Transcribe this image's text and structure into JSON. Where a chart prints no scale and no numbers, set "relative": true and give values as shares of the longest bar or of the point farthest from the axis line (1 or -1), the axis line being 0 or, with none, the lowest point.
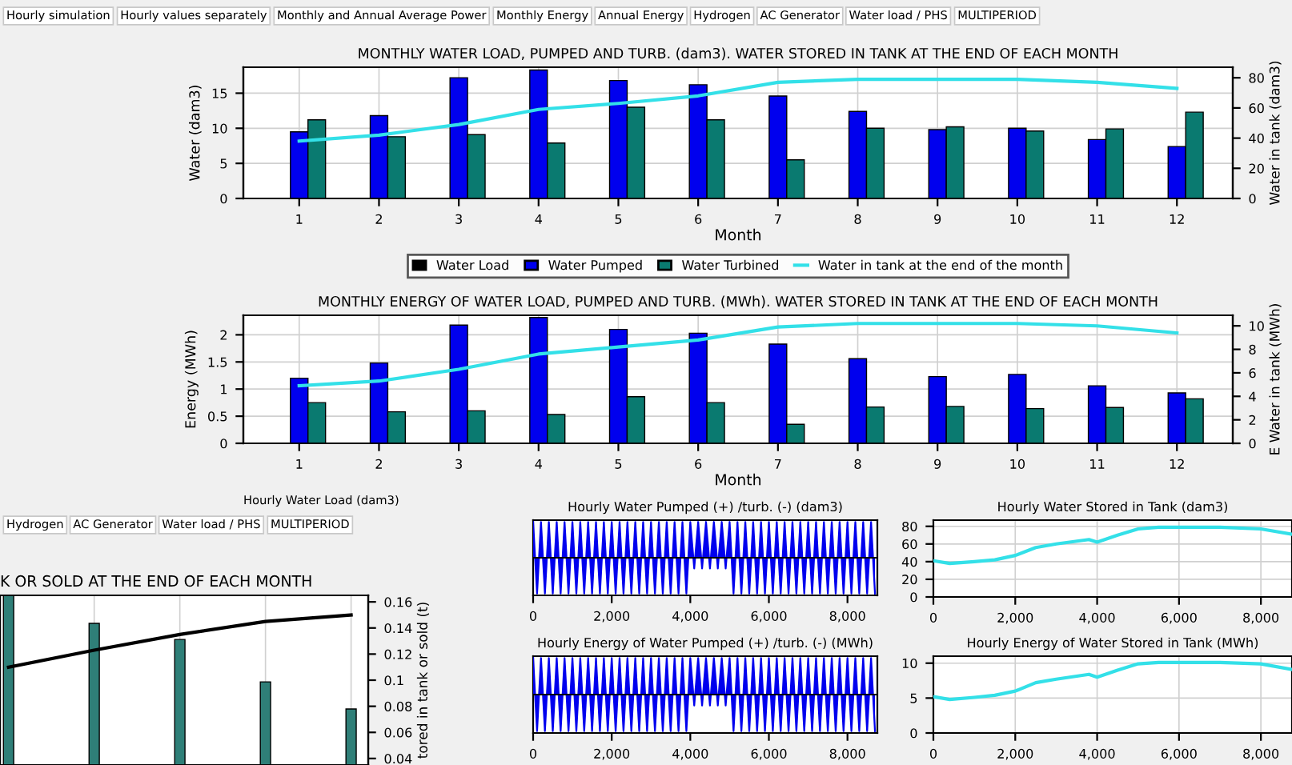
{
  "chart_data": [
    {
      "type": "bar",
      "title": "MONTHLY WATER LOAD, PUMPED AND TURB. (dam3). WATER STORED IN TANK AT THE END OF EACH MONTH",
      "xlabel": "Month",
      "ylabel": "Water (dam3)",
      "y2label": "Water in tank (dam3)",
      "annotations": [
        "Hourly simulation",
        "Hourly values separately",
        "Monthly and Annual Average Power",
        "Monthly Energy",
        "Annual Energy",
        "Hydrogen",
        "AC Generator",
        "Water load / PHS",
        "MULTIPERIOD"
      ],
      "categories": [
        "1",
        "2",
        "3",
        "4",
        "5",
        "6",
        "7",
        "8",
        "9",
        "10",
        "11",
        "12"
      ],
      "series": [
        {
          "name": "Water Load",
          "color": "#000000",
          "values": [
            0,
            0,
            0,
            0,
            0,
            0,
            0,
            0,
            0,
            0,
            0,
            0
          ]
        },
        {
          "name": "Water Pumped",
          "color": "#0000ee",
          "values": [
            9.5,
            11.8,
            17.2,
            18.3,
            16.8,
            16.2,
            14.6,
            12.4,
            9.8,
            10.0,
            8.4,
            7.4
          ]
        },
        {
          "name": "Water Turbined",
          "color": "#0a7a70",
          "values": [
            11.2,
            8.8,
            9.1,
            7.9,
            13.0,
            11.2,
            5.5,
            10.0,
            10.2,
            9.6,
            9.9,
            12.3
          ]
        },
        {
          "name": "Water in tank at the end of the month",
          "type": "line",
          "axis": "y2",
          "color": "#33e0e8",
          "values": [
            38,
            42,
            49,
            59,
            63,
            68,
            77,
            79,
            79,
            79,
            77,
            73
          ]
        }
      ],
      "ylim": [
        0,
        18.7
      ],
      "yticks": [
        0,
        5,
        10,
        15
      ],
      "y2lim": [
        0,
        87
      ],
      "y2ticks": [
        0,
        20,
        40,
        60,
        80
      ],
      "grid": true,
      "legend": "bottom"
    },
    {
      "type": "bar",
      "title": "MONTHLY ENERGY OF WATER LOAD, PUMPED AND TURB. (MWh). WATER STORED IN TANK AT THE END OF EACH MONTH",
      "xlabel": "Month",
      "ylabel": "Energy (MWh)",
      "y2label": "E Water in tank (MWh)",
      "categories": [
        "1",
        "2",
        "3",
        "4",
        "5",
        "6",
        "7",
        "8",
        "9",
        "10",
        "11",
        "12"
      ],
      "series": [
        {
          "color": "#000000",
          "values": [
            0,
            0,
            0,
            0,
            0,
            0,
            0,
            0,
            0,
            0,
            0,
            0
          ]
        },
        {
          "color": "#0000ee",
          "values": [
            1.2,
            1.48,
            2.18,
            2.32,
            2.1,
            2.03,
            1.83,
            1.56,
            1.23,
            1.27,
            1.06,
            0.93
          ]
        },
        {
          "color": "#0a7a70",
          "values": [
            0.75,
            0.58,
            0.6,
            0.53,
            0.86,
            0.75,
            0.35,
            0.67,
            0.68,
            0.64,
            0.66,
            0.82
          ]
        },
        {
          "type": "line",
          "axis": "y2",
          "color": "#33e0e8",
          "values": [
            4.9,
            5.3,
            6.3,
            7.6,
            8.2,
            8.8,
            9.9,
            10.2,
            10.2,
            10.2,
            10.0,
            9.4
          ]
        }
      ],
      "ylim": [
        0,
        2.36
      ],
      "yticks": [
        0,
        0.5,
        1,
        1.5,
        2
      ],
      "y2lim": [
        0,
        10.9
      ],
      "y2ticks": [
        0,
        2,
        4,
        6,
        8,
        10
      ],
      "grid": true
    },
    {
      "type": "bar",
      "title": "K OR SOLD AT THE END OF EACH MONTH",
      "y2label": "tored in tank or sold (t)",
      "annotations": [
        "Hourly Water Load (dam3)",
        "Hydrogen",
        "AC Generator",
        "Water load / PHS",
        "MULTIPERIOD"
      ],
      "categories": [
        null,
        null,
        null,
        null,
        null
      ],
      "relative": true,
      "series": [
        {
          "color": "#2f7f78",
          "values": [
            1,
            0.835,
            0.74,
            0.49,
            0.33
          ]
        },
        {
          "type": "line",
          "axis": "y2",
          "color": "#000000",
          "values": [
            0.11,
            0.123,
            0.135,
            0.145,
            0.15
          ]
        }
      ],
      "y2lim": [
        0.035,
        0.165
      ],
      "y2ticks": [
        0.04,
        0.06,
        0.08,
        0.1,
        0.12,
        0.14,
        0.16
      ],
      "grid": true,
      "tick_labels": "y2"
    },
    {
      "type": "area",
      "title": "Hourly Water Pumped (+) /turb. (-) (dam3)",
      "relative": true,
      "series": [
        {
          "color": "#0000ee",
          "x": [
            0,
            100,
            200,
            300,
            400,
            500,
            600,
            700,
            800,
            900,
            1000,
            1100,
            1200,
            1300,
            1400,
            1500,
            1600,
            1700,
            1800,
            1900,
            2000,
            2100,
            2200,
            2300,
            2400,
            2500,
            2600,
            2700,
            2800,
            2900,
            3000,
            3100,
            3200,
            3300,
            3400,
            3500,
            3600,
            3700,
            3800,
            3900,
            4000,
            4100,
            4200,
            4300,
            4400,
            4500,
            4600,
            4700,
            4800,
            4900,
            5000,
            5100,
            5200,
            5300,
            5400,
            5500,
            5600,
            5700,
            5800,
            5900,
            6000,
            6100,
            6200,
            6300,
            6400,
            6500,
            6600,
            6700,
            6800,
            6900,
            7000,
            7100,
            7200,
            7300,
            7400,
            7500,
            7600,
            7700,
            7800,
            7900,
            8000,
            8100,
            8200,
            8300,
            8400,
            8500,
            8600,
            8700
          ],
          "values": [
            1,
            -1,
            1,
            -1,
            1,
            -1,
            1,
            -1,
            1,
            -1,
            1,
            -1,
            1,
            -1,
            1,
            -1,
            1,
            -1,
            1,
            -1,
            1,
            -1,
            1,
            -1,
            1,
            -1,
            1,
            -1,
            1,
            -1,
            1,
            -1,
            1,
            -1,
            1,
            -1,
            1,
            -1,
            1,
            -1,
            1,
            -0.3,
            1,
            -0.3,
            1,
            -0.3,
            1,
            -0.3,
            1,
            -0.3,
            1,
            -1,
            1,
            -1,
            1,
            -1,
            1,
            -1,
            1,
            -1,
            1,
            -1,
            1,
            -1,
            1,
            -1,
            1,
            -1,
            1,
            -1,
            1,
            -1,
            1,
            -1,
            1,
            -1,
            1,
            -1,
            1,
            -1,
            1,
            -1,
            1,
            -1,
            1,
            -1,
            1,
            -1
          ]
        }
      ],
      "xlim": [
        0,
        8760
      ],
      "xticks": [
        0,
        {
          "value": 2000,
          "label": "2,000"
        },
        {
          "value": 4000,
          "label": "4,000"
        },
        {
          "value": 6000,
          "label": "6,000"
        },
        {
          "value": 8000,
          "label": "8,000"
        }
      ],
      "tick_labels": "x"
    },
    {
      "type": "line",
      "title": "Hourly Water Stored in Tank (dam3)",
      "series": [
        {
          "color": "#33e0e8",
          "x": [
            0,
            400,
            1000,
            1500,
            2000,
            2500,
            3000,
            3800,
            4000,
            4500,
            5000,
            5500,
            6000,
            7000,
            8000,
            8760
          ],
          "values": [
            41,
            38,
            40,
            42,
            47,
            56,
            60,
            65,
            62,
            70,
            77,
            79,
            79,
            79,
            77,
            71
          ]
        }
      ],
      "xlim": [
        0,
        8760
      ],
      "xticks": [
        0,
        {
          "value": 2000,
          "label": "2,000"
        },
        {
          "value": 4000,
          "label": "4,000"
        },
        {
          "value": 6000,
          "label": "6,000"
        },
        {
          "value": 8000,
          "label": "8,000"
        }
      ],
      "ylim": [
        0,
        87
      ],
      "yticks": [
        0,
        20,
        40,
        60,
        80
      ],
      "grid": true
    },
    {
      "type": "area",
      "title": "Hourly Energy of Water Pumped (+) /turb. (-) (MWh)",
      "relative": true,
      "series": [
        {
          "color": "#0000ee",
          "x": [
            0,
            100,
            200,
            300,
            400,
            500,
            600,
            700,
            800,
            900,
            1000,
            1100,
            1200,
            1300,
            1400,
            1500,
            1600,
            1700,
            1800,
            1900,
            2000,
            2100,
            2200,
            2300,
            2400,
            2500,
            2600,
            2700,
            2800,
            2900,
            3000,
            3100,
            3200,
            3300,
            3400,
            3500,
            3600,
            3700,
            3800,
            3900,
            4000,
            4100,
            4200,
            4300,
            4400,
            4500,
            4600,
            4700,
            4800,
            4900,
            5000,
            5100,
            5200,
            5300,
            5400,
            5500,
            5600,
            5700,
            5800,
            5900,
            6000,
            6100,
            6200,
            6300,
            6400,
            6500,
            6600,
            6700,
            6800,
            6900,
            7000,
            7100,
            7200,
            7300,
            7400,
            7500,
            7600,
            7700,
            7800,
            7900,
            8000,
            8100,
            8200,
            8300,
            8400,
            8500,
            8600,
            8700
          ],
          "values": [
            1,
            -1,
            1,
            -1,
            1,
            -1,
            1,
            -1,
            1,
            -1,
            1,
            -1,
            1,
            -1,
            1,
            -1,
            1,
            -1,
            1,
            -1,
            1,
            -1,
            1,
            -1,
            1,
            -1,
            1,
            -1,
            1,
            -1,
            1,
            -1,
            1,
            -1,
            1,
            -1,
            1,
            -1,
            1,
            -1,
            1,
            -0.3,
            1,
            -0.3,
            1,
            -0.3,
            1,
            -0.3,
            1,
            -0.3,
            1,
            -1,
            1,
            -1,
            1,
            -1,
            1,
            -1,
            1,
            -1,
            1,
            -1,
            1,
            -1,
            1,
            -1,
            1,
            -1,
            1,
            -1,
            1,
            -1,
            1,
            -1,
            1,
            -1,
            1,
            -1,
            1,
            -1,
            1,
            -1,
            1,
            -1,
            1,
            -1,
            1,
            -1
          ]
        }
      ],
      "xlim": [
        0,
        8760
      ],
      "xticks": [
        0,
        {
          "value": 2000,
          "label": "2,000"
        },
        {
          "value": 4000,
          "label": "4,000"
        },
        {
          "value": 6000,
          "label": "6,000"
        },
        {
          "value": 8000,
          "label": "8,000"
        }
      ],
      "tick_labels": "x"
    },
    {
      "type": "line",
      "title": "Hourly Energy of Water Stored in Tank (MWh)",
      "series": [
        {
          "color": "#33e0e8",
          "x": [
            0,
            400,
            1000,
            1500,
            2000,
            2500,
            3000,
            3800,
            4000,
            4500,
            5000,
            5500,
            6000,
            7000,
            8000,
            8760
          ],
          "values": [
            5.2,
            4.8,
            5.1,
            5.4,
            6.0,
            7.2,
            7.7,
            8.4,
            8.0,
            9.0,
            9.9,
            10.1,
            10.1,
            10.1,
            9.9,
            9.1
          ]
        }
      ],
      "xlim": [
        0,
        8760
      ],
      "xticks": [
        0,
        {
          "value": 2000,
          "label": "2,000"
        },
        {
          "value": 4000,
          "label": "4,000"
        },
        {
          "value": 6000,
          "label": "6,000"
        },
        {
          "value": 8000,
          "label": "8,000"
        }
      ],
      "ylim": [
        0,
        11
      ],
      "yticks": [
        0,
        5,
        10
      ],
      "grid": true
    }
  ]
}
